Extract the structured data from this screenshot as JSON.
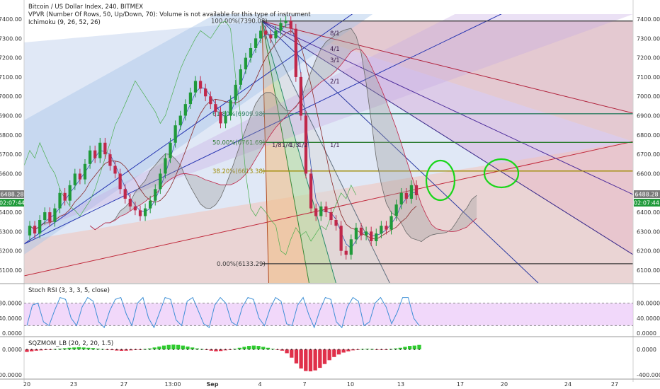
{
  "header": {
    "title": "Bitcoin / US Dollar Index, 240, BITMEX",
    "vpvr": "VPVR (Number Of Rows, 50, Up/Down, 70): Volume is not available for this type of instrument",
    "ichimoku": "Ichimoku (9, 26, 52, 26)"
  },
  "colors": {
    "up": "#1f9a3a",
    "down": "#c0284a",
    "fib_line": "#2e7d32",
    "fib_golden": "#9e8a00",
    "gann_line": "#3a2a8a",
    "marker": "#19d619",
    "stoch": "#3d8fd6",
    "stoch_band": "#e6b8f5",
    "sqz_up": "#2ecc2e",
    "sqz_down": "#e0304a"
  },
  "price_badges": {
    "left_price": "6488.28",
    "left_time": "02:07:44",
    "right_price": "6488.28",
    "right_time": "02:07:44"
  },
  "fib_labels": [
    {
      "text": "100.00%(7390.08)",
      "price": 7390.08
    },
    {
      "text": "61.80%(6909.98)",
      "price": 6909.98
    },
    {
      "text": "50.00%(6761.69)",
      "price": 6761.69
    },
    {
      "text": "38.20%(6613.38)",
      "price": 6613.38
    },
    {
      "text": "0.00%(6133.29)",
      "price": 6133.29
    }
  ],
  "gann_labels": [
    "8/1",
    "4/1",
    "3/1",
    "2/1",
    "1/1",
    "1/8",
    "1/4",
    "1/3",
    "1/2"
  ],
  "stoch": {
    "label": "Stoch RSI (3, 3, 3, 5, close)",
    "ticks": [
      "80.0000",
      "40.0000",
      "0.0000"
    ],
    "upper": 80,
    "lower": 20,
    "values": [
      20,
      75,
      80,
      30,
      20,
      60,
      95,
      90,
      40,
      20,
      70,
      95,
      85,
      30,
      15,
      60,
      90,
      95,
      50,
      20,
      80,
      95,
      40,
      15,
      55,
      95,
      90,
      35,
      20,
      85,
      95,
      60,
      25,
      15,
      75,
      95,
      80,
      30,
      20,
      70,
      95,
      90,
      40,
      20,
      65,
      95,
      85,
      25,
      20,
      75,
      95,
      50,
      15,
      60,
      95,
      90,
      30,
      15,
      70,
      95,
      85,
      20,
      30,
      80,
      95,
      70,
      25,
      55,
      95,
      95,
      40,
      20
    ]
  },
  "sqz": {
    "label": "SQZMOM_LB (20, 2, 20, 1.5)",
    "ticks": [
      "0.0000",
      "-400.0000"
    ],
    "values": [
      -40,
      -30,
      -20,
      -15,
      -10,
      -5,
      5,
      12,
      18,
      25,
      30,
      35,
      30,
      25,
      20,
      12,
      5,
      -5,
      -12,
      -18,
      -22,
      -20,
      -15,
      -10,
      -4,
      5,
      15,
      30,
      45,
      60,
      70,
      75,
      70,
      60,
      45,
      30,
      15,
      5,
      -10,
      -20,
      -30,
      -25,
      -15,
      -5,
      10,
      25,
      40,
      55,
      60,
      55,
      40,
      25,
      10,
      -5,
      -20,
      -60,
      -130,
      -220,
      -300,
      -340,
      -345,
      -330,
      -290,
      -230,
      -170,
      -120,
      -80,
      -50,
      -30,
      -15,
      -5,
      5,
      10,
      5,
      -3,
      -8,
      -5,
      5,
      15,
      25,
      40,
      55,
      60,
      70
    ]
  },
  "chart_data": {
    "type": "candlestick",
    "title": "Bitcoin / US Dollar Index, 240, BITMEX",
    "xlabel": "",
    "ylabel": "",
    "ylim": [
      6050,
      7470
    ],
    "y_ticks": [
      6100,
      6200,
      6300,
      6400,
      6500,
      6600,
      6700,
      6800,
      6900,
      7000,
      7100,
      7200,
      7300,
      7400
    ],
    "x_ticks": [
      "20",
      "23",
      "27",
      "13:00",
      "Sep",
      "4",
      "7",
      "10",
      "13",
      "17",
      "20",
      "24",
      "27"
    ],
    "candles": [
      [
        6280,
        6330
      ],
      [
        6330,
        6290
      ],
      [
        6290,
        6360
      ],
      [
        6360,
        6400
      ],
      [
        6400,
        6350
      ],
      [
        6350,
        6420
      ],
      [
        6420,
        6500
      ],
      [
        6500,
        6460
      ],
      [
        6460,
        6540
      ],
      [
        6540,
        6600
      ],
      [
        6600,
        6570
      ],
      [
        6570,
        6650
      ],
      [
        6650,
        6720
      ],
      [
        6720,
        6680
      ],
      [
        6680,
        6760
      ],
      [
        6760,
        6700
      ],
      [
        6700,
        6640
      ],
      [
        6640,
        6600
      ],
      [
        6600,
        6520
      ],
      [
        6520,
        6470
      ],
      [
        6470,
        6430
      ],
      [
        6430,
        6410
      ],
      [
        6410,
        6380
      ],
      [
        6380,
        6420
      ],
      [
        6420,
        6460
      ],
      [
        6460,
        6520
      ],
      [
        6520,
        6600
      ],
      [
        6600,
        6680
      ],
      [
        6680,
        6760
      ],
      [
        6760,
        6850
      ],
      [
        6850,
        6900
      ],
      [
        6900,
        6960
      ],
      [
        6960,
        7020
      ],
      [
        7020,
        7080
      ],
      [
        7080,
        7040
      ],
      [
        7040,
        7000
      ],
      [
        7000,
        6960
      ],
      [
        6960,
        6920
      ],
      [
        6920,
        6860
      ],
      [
        6860,
        6900
      ],
      [
        6900,
        6980
      ],
      [
        6980,
        7060
      ],
      [
        7060,
        7140
      ],
      [
        7140,
        7200
      ],
      [
        7200,
        7250
      ],
      [
        7250,
        7300
      ],
      [
        7300,
        7340
      ],
      [
        7340,
        7320
      ],
      [
        7320,
        7300
      ],
      [
        7300,
        7340
      ],
      [
        7340,
        7380
      ],
      [
        7380,
        7390
      ],
      [
        7390,
        7350
      ],
      [
        7350,
        7100
      ],
      [
        7100,
        6900
      ],
      [
        6900,
        6600
      ],
      [
        6600,
        6420
      ],
      [
        6420,
        6380
      ],
      [
        6380,
        6430
      ],
      [
        6430,
        6400
      ],
      [
        6400,
        6360
      ],
      [
        6360,
        6330
      ],
      [
        6330,
        6200
      ],
      [
        6200,
        6180
      ],
      [
        6180,
        6260
      ],
      [
        6260,
        6320
      ],
      [
        6320,
        6280
      ],
      [
        6280,
        6300
      ],
      [
        6300,
        6250
      ],
      [
        6250,
        6290
      ],
      [
        6290,
        6330
      ],
      [
        6330,
        6310
      ],
      [
        6310,
        6380
      ],
      [
        6380,
        6440
      ],
      [
        6440,
        6500
      ],
      [
        6500,
        6470
      ],
      [
        6470,
        6540
      ],
      [
        6540,
        6488
      ]
    ]
  }
}
